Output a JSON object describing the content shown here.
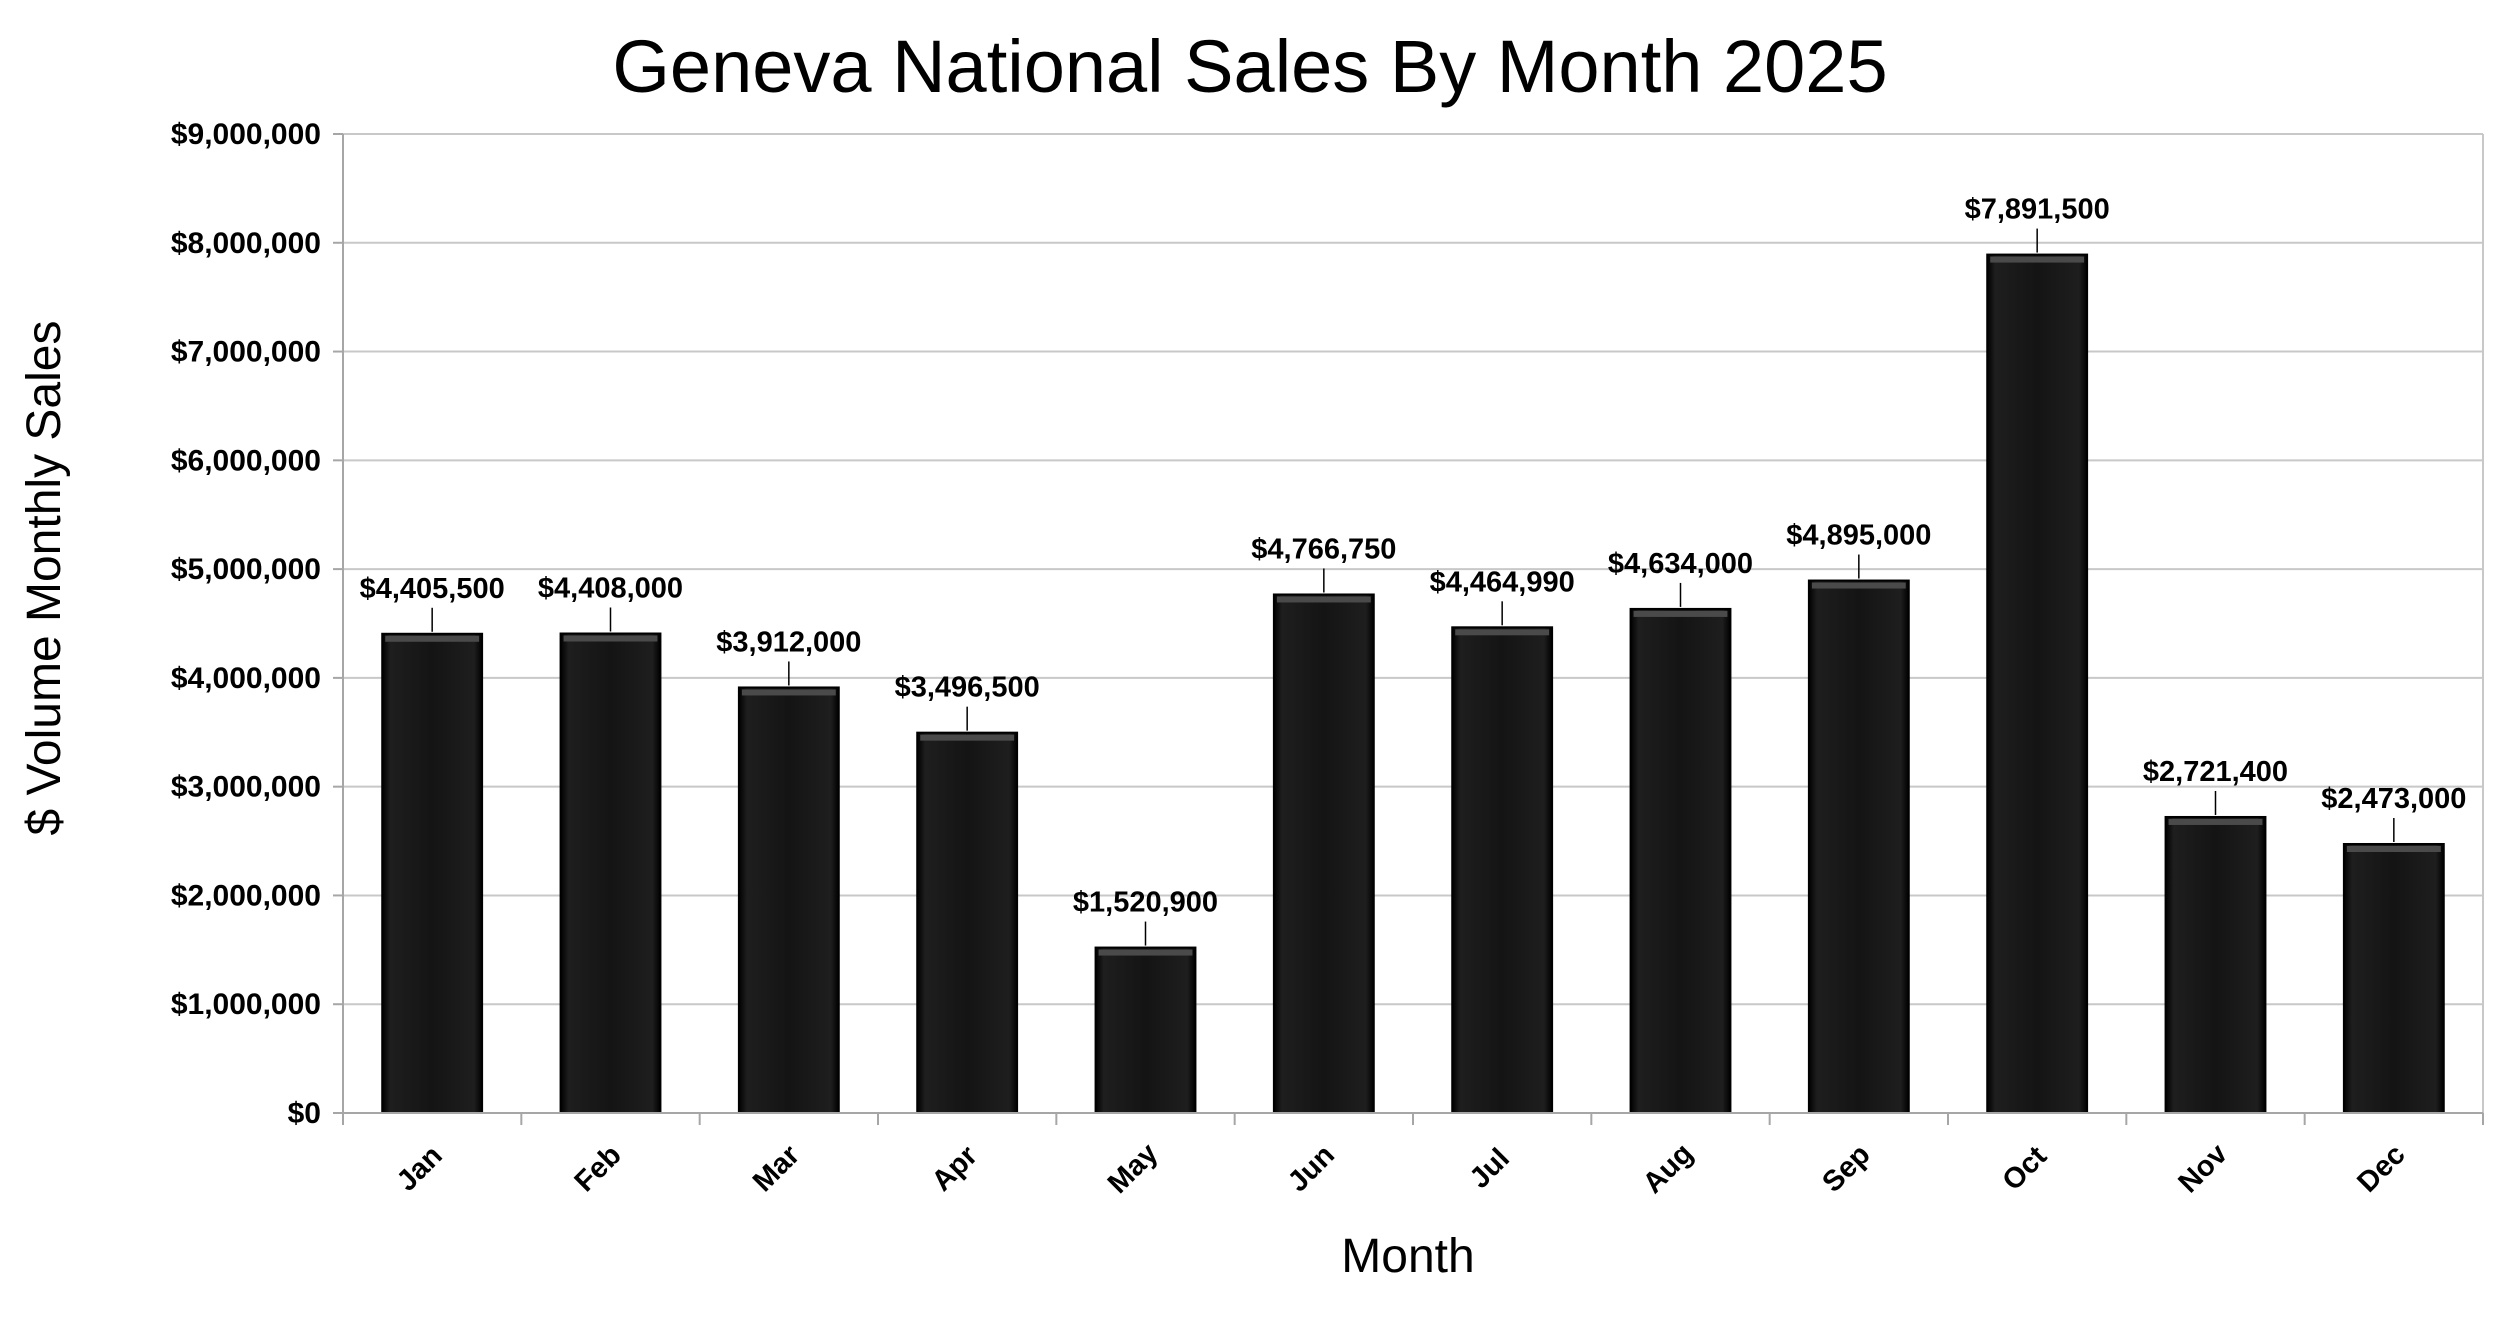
{
  "chart_data": {
    "type": "bar",
    "title": "Geneva National Sales By Month 2025",
    "xlabel": "Month",
    "ylabel": "$ Volume Monthly Sales",
    "categories": [
      "Jan",
      "Feb",
      "Mar",
      "Apr",
      "May",
      "Jun",
      "Jul",
      "Aug",
      "Sep",
      "Oct",
      "Nov",
      "Dec"
    ],
    "values": [
      4405500,
      4408000,
      3912000,
      3496500,
      1520900,
      4766750,
      4464990,
      4634000,
      4895000,
      7891500,
      2721400,
      2473000
    ],
    "data_labels": [
      "$4,405,500",
      "$4,408,000",
      "$3,912,000",
      "$3,496,500",
      "$1,520,900",
      "$4,766,750",
      "$4,464,990",
      "$4,634,000",
      "$4,895,000",
      "$7,891,500",
      "$2,721,400",
      "$2,473,000"
    ],
    "ylim": [
      0,
      9000000
    ],
    "yticks": [
      0,
      1000000,
      2000000,
      3000000,
      4000000,
      5000000,
      6000000,
      7000000,
      8000000,
      9000000
    ],
    "ytick_labels": [
      "$0",
      "$1,000,000",
      "$2,000,000",
      "$3,000,000",
      "$4,000,000",
      "$5,000,000",
      "$6,000,000",
      "$7,000,000",
      "$8,000,000",
      "$9,000,000"
    ],
    "grid": true,
    "legend": "none",
    "colors": {
      "bar": "#141414",
      "bar_edge": "#000000",
      "grid": "#c8c8c8",
      "axis": "#a6a6a6"
    }
  }
}
